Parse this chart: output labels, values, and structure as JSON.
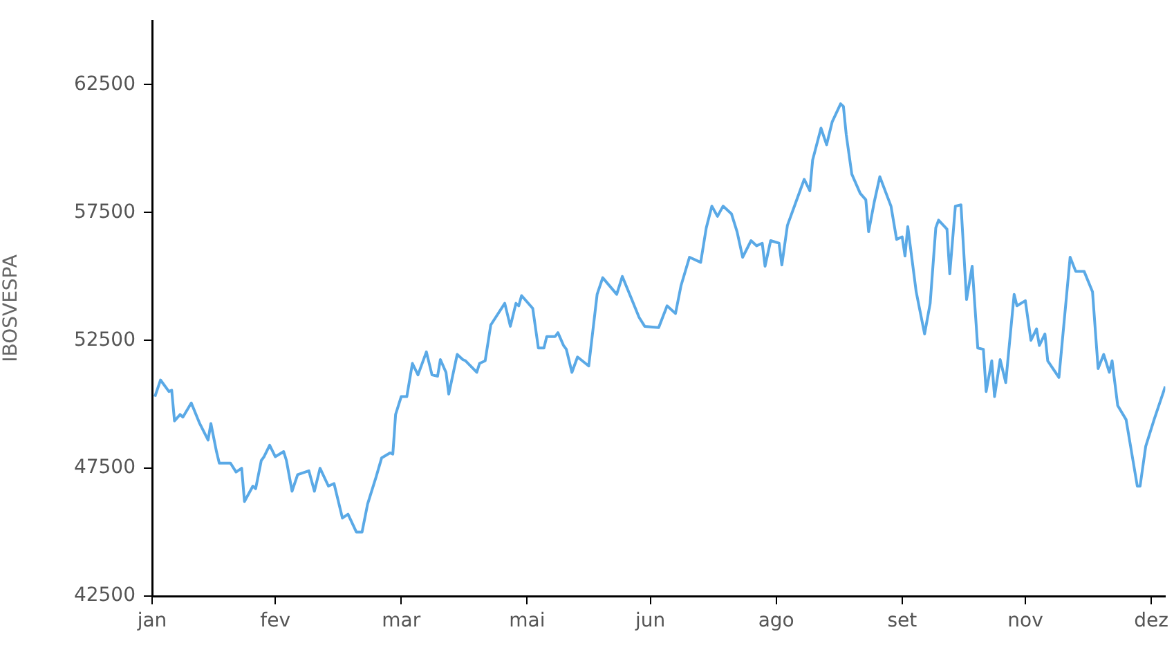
{
  "chart_data": {
    "type": "line",
    "ylabel": "IBOSVESPA",
    "color": "#5aa9e6",
    "x": [
      "--01-02",
      "--01-04",
      "--01-07",
      "--01-08",
      "--01-09",
      "--01-11",
      "--01-12",
      "--01-15",
      "--01-18",
      "--01-21",
      "--01-22",
      "--01-24",
      "--01-25",
      "--01-29",
      "--01-31",
      "--02-02",
      "--02-03",
      "--02-06",
      "--02-07",
      "--02-09",
      "--02-10",
      "--02-12",
      "--02-14",
      "--02-17",
      "--02-18",
      "--02-20",
      "--02-22",
      "--02-26",
      "--02-28",
      "--03-02",
      "--03-05",
      "--03-07",
      "--03-10",
      "--03-12",
      "--03-15",
      "--03-17",
      "--03-19",
      "--03-22",
      "--03-24",
      "--03-27",
      "--03-28",
      "--03-29",
      "--03-31",
      "--04-02",
      "--04-04",
      "--04-06",
      "--04-09",
      "--04-11",
      "--04-13",
      "--04-14",
      "--04-16",
      "--04-17",
      "--04-20",
      "--04-22",
      "--04-23",
      "--04-27",
      "--04-28",
      "--04-30",
      "--05-02",
      "--05-07",
      "--05-09",
      "--05-11",
      "--05-12",
      "--05-13",
      "--05-17",
      "--05-19",
      "--05-21",
      "--05-22",
      "--05-25",
      "--05-26",
      "--05-28",
      "--05-29",
      "--05-31",
      "--06-02",
      "--06-06",
      "--06-09",
      "--06-11",
      "--06-16",
      "--06-18",
      "--06-21",
      "--06-24",
      "--06-26",
      "--07-01",
      "--07-04",
      "--07-07",
      "--07-09",
      "--07-12",
      "--07-16",
      "--07-18",
      "--07-20",
      "--07-22",
      "--07-24",
      "--07-27",
      "--07-29",
      "--07-31",
      "--08-03",
      "--08-05",
      "--08-07",
      "--08-08",
      "--08-10",
      "--08-13",
      "--08-14",
      "--08-16",
      "--08-19",
      "--08-22",
      "--08-24",
      "--08-25",
      "--08-28",
      "--08-30",
      "--09-01",
      "--09-04",
      "--09-05",
      "--09-06",
      "--09-08",
      "--09-11",
      "--09-13",
      "--09-14",
      "--09-16",
      "--09-18",
      "--09-22",
      "--09-24",
      "--09-26",
      "--09-27",
      "--09-28",
      "--10-01",
      "--10-02",
      "--10-04",
      "--10-06",
      "--10-08",
      "--10-09",
      "--10-12",
      "--10-13",
      "--10-15",
      "--10-17",
      "--10-19",
      "--10-21",
      "--10-23",
      "--10-25",
      "--10-26",
      "--10-28",
      "--10-29",
      "--10-31",
      "--11-02",
      "--11-05",
      "--11-06",
      "--11-09",
      "--11-11",
      "--11-13",
      "--11-14",
      "--11-16",
      "--11-17",
      "--11-21",
      "--11-25",
      "--11-27",
      "--11-30",
      "--12-03",
      "--12-05",
      "--12-07",
      "--12-09",
      "--12-10",
      "--12-12",
      "--12-15",
      "--12-19",
      "--12-20",
      "--12-22",
      "--12-25",
      "--12-29"
    ],
    "values": [
      50300,
      50950,
      50500,
      50550,
      49350,
      49600,
      49500,
      50050,
      49250,
      48600,
      49250,
      48150,
      47700,
      47700,
      47350,
      47500,
      46200,
      46800,
      46700,
      47800,
      47950,
      48400,
      47950,
      48150,
      47800,
      46600,
      47250,
      47400,
      46600,
      47500,
      46800,
      46900,
      45550,
      45700,
      45000,
      45000,
      46100,
      47150,
      47900,
      48100,
      48050,
      49600,
      50300,
      50300,
      51600,
      51150,
      52050,
      51150,
      51100,
      51750,
      51250,
      50400,
      51950,
      51750,
      51700,
      51250,
      51600,
      51700,
      53100,
      53950,
      53050,
      53950,
      53850,
      54250,
      53750,
      52200,
      52200,
      52650,
      52650,
      52800,
      52300,
      52150,
      51250,
      51850,
      51500,
      54300,
      54950,
      54300,
      55000,
      54200,
      53400,
      53050,
      53000,
      53850,
      53550,
      54650,
      55750,
      55550,
      56900,
      57750,
      57350,
      57750,
      57450,
      56750,
      55750,
      56400,
      56200,
      56300,
      55400,
      56400,
      56300,
      55450,
      57000,
      57900,
      58800,
      58350,
      59550,
      60800,
      60150,
      61050,
      61750,
      61650,
      60550,
      59000,
      58250,
      58000,
      56750,
      57900,
      58900,
      57750,
      56450,
      56550,
      55800,
      56950,
      54400,
      53850,
      52750,
      53950,
      56900,
      57200,
      56850,
      55100,
      57750,
      57800,
      54100,
      55400,
      52200,
      52150,
      50500,
      51700,
      50300,
      51750,
      50850,
      54300,
      53850,
      54050,
      52500,
      52950,
      52300,
      52750,
      51700,
      51050,
      55750,
      55200,
      55200,
      54400,
      51400,
      51950,
      51250,
      51700,
      49950,
      49400,
      46800,
      46800,
      48350,
      49400,
      50700
    ],
    "xlim": [
      "--01-01",
      "--12-29"
    ],
    "xticks": [
      {
        "value": "--01-01",
        "label": "jan"
      },
      {
        "value": "--02-14",
        "label": "fev"
      },
      {
        "value": "--03-31",
        "label": "mar"
      },
      {
        "value": "--05-15",
        "label": "mai"
      },
      {
        "value": "--06-28",
        "label": "jun"
      },
      {
        "value": "--08-12",
        "label": "ago"
      },
      {
        "value": "--09-26",
        "label": "set"
      },
      {
        "value": "--11-09",
        "label": "nov"
      },
      {
        "value": "--12-24",
        "label": "dez"
      }
    ],
    "ylim": [
      42500,
      65000
    ],
    "yticks": [
      42500,
      47500,
      52500,
      57500,
      62500
    ]
  }
}
